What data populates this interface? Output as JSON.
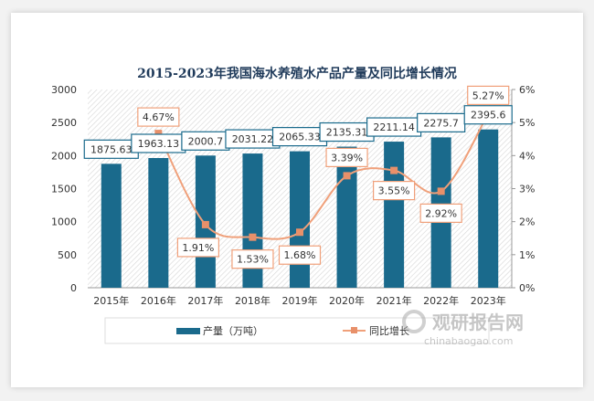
{
  "chart_data": {
    "type": "bar+line",
    "title": "2015-2023年我国海水养殖水产品产量及同比增长情况",
    "categories": [
      "2015年",
      "2016年",
      "2017年",
      "2018年",
      "2019年",
      "2020年",
      "2021年",
      "2022年",
      "2023年"
    ],
    "series": [
      {
        "name": "产量（万吨）",
        "type": "bar",
        "axis": "left",
        "values": [
          1875.63,
          1963.13,
          2000.7,
          2031.22,
          2065.33,
          2135.31,
          2211.14,
          2275.7,
          2395.6
        ],
        "labels": [
          "1875.63",
          "1963.13",
          "2000.7",
          "2031.22",
          "2065.33",
          "2135.31",
          "2211.14",
          "2275.7",
          "2395.6"
        ],
        "color": "#1a6a8c"
      },
      {
        "name": "同比增长",
        "type": "line",
        "axis": "right",
        "values": [
          null,
          4.67,
          1.91,
          1.53,
          1.68,
          3.39,
          3.55,
          2.92,
          5.27
        ],
        "labels": [
          "",
          "4.67%",
          "1.91%",
          "1.53%",
          "1.68%",
          "3.39%",
          "3.55%",
          "2.92%",
          "5.27%"
        ],
        "color": "#f0a07a"
      }
    ],
    "yleft": {
      "range": [
        0,
        3000
      ],
      "ticks": [
        "0",
        "500",
        "1000",
        "1500",
        "2000",
        "2500",
        "3000"
      ]
    },
    "yright": {
      "range": [
        0,
        6
      ],
      "ticks": [
        "0%",
        "1%",
        "2%",
        "3%",
        "4%",
        "5%",
        "6%"
      ]
    },
    "grid": false,
    "legend": "bottom"
  },
  "watermark": {
    "text": "观研报告网",
    "url_text": "chinabaogao.com"
  }
}
